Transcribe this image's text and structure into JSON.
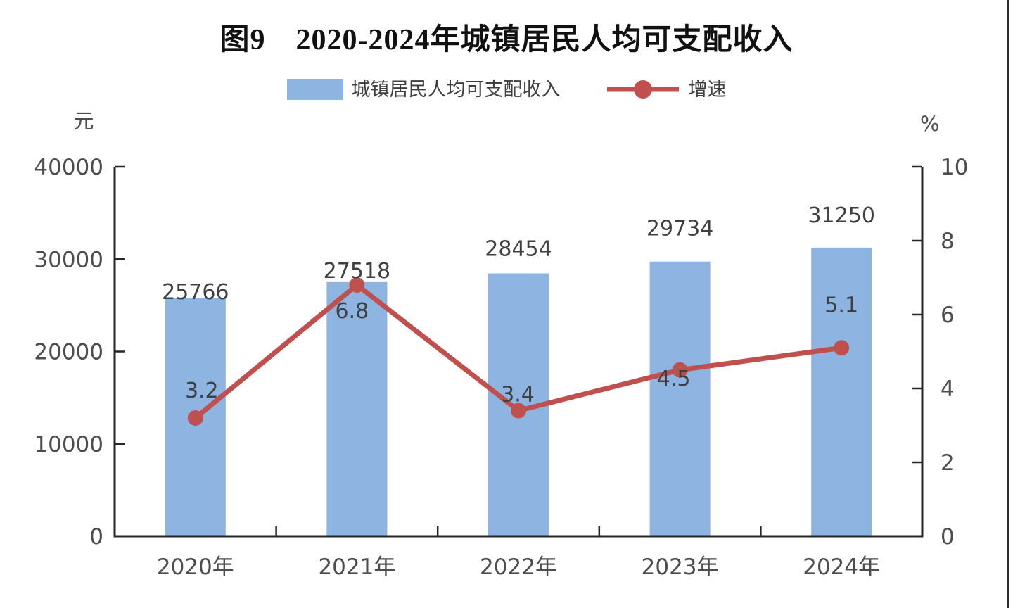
{
  "chart_data": {
    "type": "combo-bar-line",
    "title": "图9　2020-2024年城镇居民人均可支配收入",
    "categories": [
      "2020年",
      "2021年",
      "2022年",
      "2023年",
      "2024年"
    ],
    "series": [
      {
        "name": "城镇居民人均可支配收入",
        "type": "bar",
        "axis": "left",
        "values": [
          25766,
          27518,
          28454,
          29734,
          31250
        ],
        "labels": [
          "25766",
          "27518",
          "28454",
          "29734",
          "31250"
        ],
        "color": "#8EB4E2"
      },
      {
        "name": "增速",
        "type": "line",
        "axis": "right",
        "values": [
          3.2,
          6.8,
          3.4,
          4.5,
          5.1
        ],
        "labels": [
          "3.2",
          "6.8",
          "3.4",
          "4.5",
          "5.1"
        ],
        "color": "#C0504D"
      }
    ],
    "left_axis": {
      "unit": "元",
      "min": 0,
      "max": 40000,
      "tick_step": 10000,
      "ticks": [
        "0",
        "10000",
        "20000",
        "30000",
        "40000"
      ]
    },
    "right_axis": {
      "unit": "%",
      "min": 0,
      "max": 10,
      "tick_step": 2,
      "ticks": [
        "0",
        "2",
        "4",
        "6",
        "8",
        "10"
      ]
    },
    "grid": false,
    "legend_position": "top",
    "colors": {
      "axis_line": "#262626",
      "tick_text": "#4d4d4d",
      "data_label_text": "#3f3f3f",
      "title_text": "#111111"
    }
  }
}
